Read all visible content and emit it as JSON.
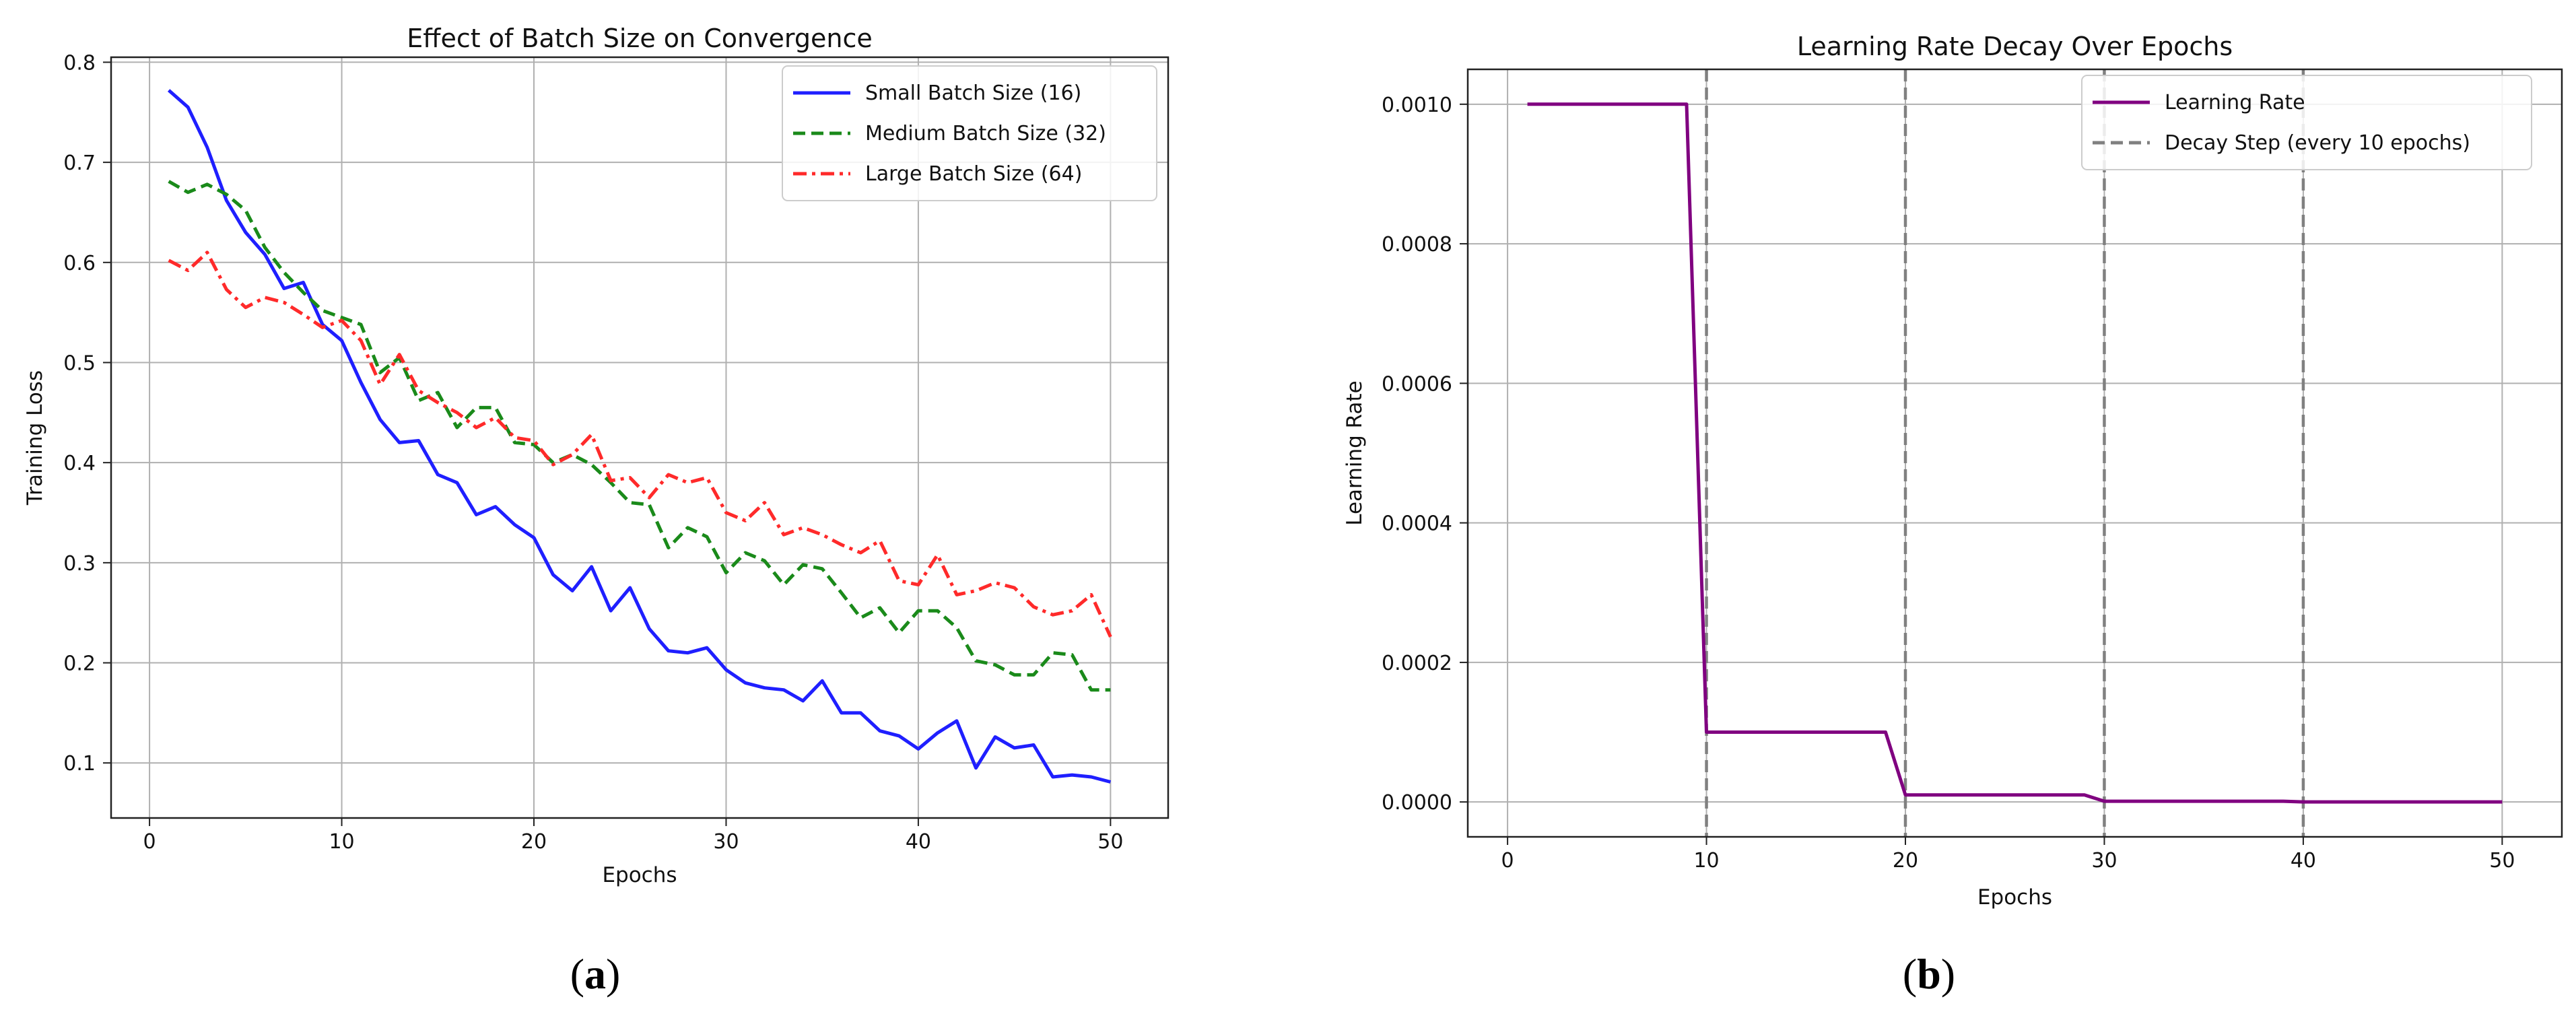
{
  "chart_data": [
    {
      "type": "line",
      "title": "Effect of Batch Size on Convergence",
      "xlabel": "Epochs",
      "ylabel": "Training Loss",
      "xlim": [
        -2,
        53
      ],
      "ylim": [
        0.045,
        0.805
      ],
      "xticks": [
        "0",
        "10",
        "20",
        "30",
        "40",
        "50"
      ],
      "yticks": [
        "0.1",
        "0.2",
        "0.3",
        "0.4",
        "0.5",
        "0.6",
        "0.7",
        "0.8"
      ],
      "grid": true,
      "legend_position": "top-right",
      "panel_label": {
        "open": "(",
        "letter": "a",
        "close": ")"
      },
      "x": [
        1,
        2,
        3,
        4,
        5,
        6,
        7,
        8,
        9,
        10,
        11,
        12,
        13,
        14,
        15,
        16,
        17,
        18,
        19,
        20,
        21,
        22,
        23,
        24,
        25,
        26,
        27,
        28,
        29,
        30,
        31,
        32,
        33,
        34,
        35,
        36,
        37,
        38,
        39,
        40,
        41,
        42,
        43,
        44,
        45,
        46,
        47,
        48,
        49,
        50
      ],
      "series": [
        {
          "name": "Small Batch Size (16)",
          "color": "#1f1fff",
          "dash": "solid",
          "values": [
            0.772,
            0.755,
            0.715,
            0.662,
            0.63,
            0.608,
            0.574,
            0.58,
            0.538,
            0.522,
            0.48,
            0.443,
            0.42,
            0.422,
            0.388,
            0.38,
            0.348,
            0.356,
            0.338,
            0.325,
            0.288,
            0.272,
            0.296,
            0.252,
            0.275,
            0.234,
            0.212,
            0.21,
            0.215,
            0.193,
            0.18,
            0.175,
            0.173,
            0.162,
            0.182,
            0.15,
            0.15,
            0.132,
            0.127,
            0.114,
            0.13,
            0.142,
            0.095,
            0.126,
            0.115,
            0.118,
            0.086,
            0.088,
            0.086,
            0.081
          ]
        },
        {
          "name": "Medium Batch Size (32)",
          "color": "#1a8a1a",
          "dash": "dashed",
          "values": [
            0.681,
            0.67,
            0.678,
            0.668,
            0.652,
            0.615,
            0.59,
            0.57,
            0.552,
            0.545,
            0.538,
            0.49,
            0.505,
            0.462,
            0.47,
            0.435,
            0.455,
            0.455,
            0.42,
            0.418,
            0.4,
            0.408,
            0.398,
            0.38,
            0.36,
            0.358,
            0.315,
            0.335,
            0.326,
            0.29,
            0.31,
            0.302,
            0.278,
            0.298,
            0.294,
            0.27,
            0.245,
            0.255,
            0.23,
            0.252,
            0.252,
            0.235,
            0.202,
            0.198,
            0.188,
            0.188,
            0.21,
            0.208,
            0.173,
            0.173
          ]
        },
        {
          "name": "Large Batch Size (64)",
          "color": "#ff2a2a",
          "dash": "dashdot",
          "values": [
            0.602,
            0.592,
            0.61,
            0.573,
            0.555,
            0.565,
            0.56,
            0.548,
            0.535,
            0.542,
            0.522,
            0.478,
            0.508,
            0.472,
            0.46,
            0.45,
            0.435,
            0.445,
            0.425,
            0.422,
            0.398,
            0.408,
            0.428,
            0.382,
            0.385,
            0.365,
            0.388,
            0.38,
            0.385,
            0.35,
            0.342,
            0.36,
            0.328,
            0.335,
            0.328,
            0.318,
            0.31,
            0.322,
            0.282,
            0.278,
            0.308,
            0.268,
            0.272,
            0.28,
            0.275,
            0.256,
            0.248,
            0.252,
            0.268,
            0.226
          ]
        }
      ]
    },
    {
      "type": "line",
      "title": "Learning Rate Decay Over Epochs",
      "xlabel": "Epochs",
      "ylabel": "Learning Rate",
      "xlim": [
        -2,
        53
      ],
      "ylim": [
        -5e-05,
        0.00105
      ],
      "xticks": [
        "0",
        "10",
        "20",
        "30",
        "40",
        "50"
      ],
      "yticks": [
        "0.0000",
        "0.0002",
        "0.0004",
        "0.0006",
        "0.0008",
        "0.0010"
      ],
      "grid": true,
      "legend_position": "top-right",
      "panel_label": {
        "open": "(",
        "letter": "b",
        "close": ")"
      },
      "x": [
        1,
        2,
        3,
        4,
        5,
        6,
        7,
        8,
        9,
        10,
        11,
        12,
        13,
        14,
        15,
        16,
        17,
        18,
        19,
        20,
        21,
        22,
        23,
        24,
        25,
        26,
        27,
        28,
        29,
        30,
        31,
        32,
        33,
        34,
        35,
        36,
        37,
        38,
        39,
        40,
        41,
        42,
        43,
        44,
        45,
        46,
        47,
        48,
        49,
        50
      ],
      "series": [
        {
          "name": "Learning Rate",
          "color": "#800080",
          "dash": "solid",
          "values": [
            0.001,
            0.001,
            0.001,
            0.001,
            0.001,
            0.001,
            0.001,
            0.001,
            0.001,
            0.0001,
            0.0001,
            0.0001,
            0.0001,
            0.0001,
            0.0001,
            0.0001,
            0.0001,
            0.0001,
            0.0001,
            1e-05,
            1e-05,
            1e-05,
            1e-05,
            1e-05,
            1e-05,
            1e-05,
            1e-05,
            1e-05,
            1e-05,
            1e-06,
            1e-06,
            1e-06,
            1e-06,
            1e-06,
            1e-06,
            1e-06,
            1e-06,
            1e-06,
            1e-06,
            1e-07,
            1e-07,
            1e-07,
            1e-07,
            1e-07,
            1e-07,
            1e-07,
            1e-07,
            1e-07,
            1e-07,
            1e-07
          ]
        }
      ],
      "vlines": {
        "name": "Decay Step (every 10 epochs)",
        "color": "#808080",
        "dash": "dashed",
        "x": [
          10,
          20,
          30,
          40
        ]
      }
    }
  ]
}
